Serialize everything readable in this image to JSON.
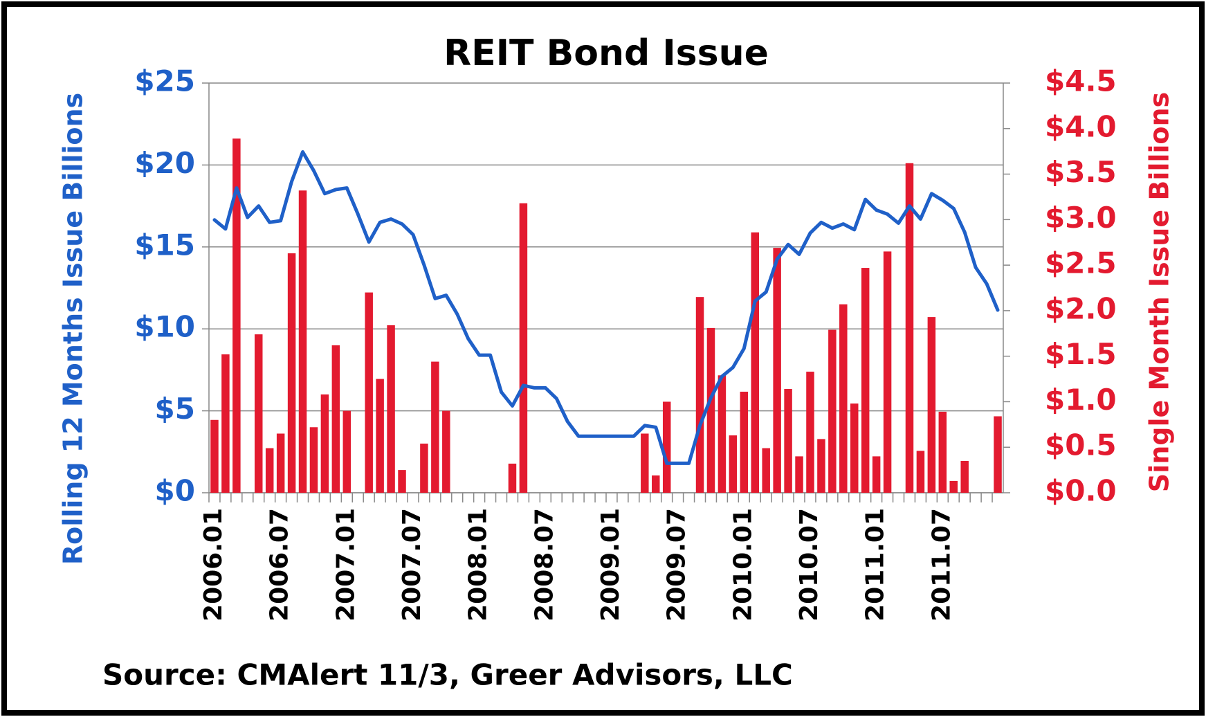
{
  "chart_data": {
    "type": "combo",
    "title": "REIT Bond Issue",
    "y_label": "Rolling 12 Months Issue Billions",
    "y2_label": "Single Month Issue Billions",
    "source": "Source: CMAlert  11/3, Greer Advisors, LLC",
    "categories": [
      "2006.01",
      null,
      null,
      null,
      null,
      null,
      "2006.07",
      null,
      null,
      null,
      null,
      null,
      "2007.01",
      null,
      null,
      null,
      null,
      null,
      "2007.07",
      null,
      null,
      null,
      null,
      null,
      "2008.01",
      null,
      null,
      null,
      null,
      null,
      "2008.07",
      null,
      null,
      null,
      null,
      null,
      "2009.01",
      null,
      null,
      null,
      null,
      null,
      "2009.07",
      null,
      null,
      null,
      null,
      null,
      "2010.01",
      null,
      null,
      null,
      null,
      null,
      "2010.07",
      null,
      null,
      null,
      null,
      null,
      "2011.01",
      null,
      null,
      null,
      null,
      null,
      "2011.07",
      null,
      null,
      null,
      null,
      null
    ],
    "series": [
      {
        "type": "bar",
        "axis": "y2",
        "color": "#e31a2f",
        "values": [
          0.8,
          1.52,
          3.89,
          0,
          1.74,
          0.49,
          0.65,
          2.63,
          3.32,
          0.72,
          1.08,
          1.62,
          0.9,
          0,
          2.2,
          1.25,
          1.84,
          0.25,
          0,
          0.54,
          1.44,
          0.9,
          0,
          0,
          0,
          0,
          0,
          0.32,
          3.18,
          0,
          0,
          0,
          0,
          0,
          0,
          0,
          0,
          0,
          0,
          0.65,
          0.19,
          1.0,
          0,
          0,
          2.15,
          1.81,
          1.29,
          0.63,
          1.11,
          2.86,
          0.49,
          2.69,
          1.14,
          0.4,
          1.33,
          0.59,
          1.79,
          2.07,
          0.98,
          2.47,
          0.4,
          2.65,
          0,
          3.62,
          0.46,
          1.93,
          0.89,
          0.13,
          0.35,
          0,
          0,
          0.84
        ]
      },
      {
        "type": "line",
        "axis": "y",
        "color": "#1f60c8",
        "values": [
          16.65,
          16.1,
          18.6,
          16.8,
          17.5,
          16.5,
          16.6,
          19.0,
          20.8,
          19.65,
          18.25,
          18.5,
          18.6,
          17.0,
          15.3,
          16.5,
          16.7,
          16.4,
          15.75,
          13.9,
          11.85,
          12.05,
          10.9,
          9.4,
          8.4,
          8.4,
          6.15,
          5.3,
          6.55,
          6.4,
          6.4,
          5.75,
          4.35,
          3.45,
          3.45,
          3.45,
          3.45,
          3.45,
          3.45,
          4.1,
          4.0,
          1.8,
          1.8,
          1.8,
          4.1,
          5.8,
          7.1,
          7.65,
          8.8,
          11.7,
          12.25,
          14.25,
          15.15,
          14.55,
          15.85,
          16.5,
          16.15,
          16.4,
          16.05,
          17.9,
          17.25,
          17.0,
          16.45,
          17.5,
          16.7,
          18.25,
          17.85,
          17.35,
          15.9,
          13.75,
          12.75,
          11.15
        ]
      }
    ],
    "ylim": [
      0,
      25
    ],
    "yticks": [
      {
        "value": 0,
        "label": "$0"
      },
      {
        "value": 5,
        "label": "$5"
      },
      {
        "value": 10,
        "label": "$10"
      },
      {
        "value": 15,
        "label": "$15"
      },
      {
        "value": 20,
        "label": "$20"
      },
      {
        "value": 25,
        "label": "$25"
      }
    ],
    "y2lim": [
      0,
      4.5
    ],
    "y2ticks": [
      {
        "value": 0,
        "label": "$0.0"
      },
      {
        "value": 0.5,
        "label": "$0.5"
      },
      {
        "value": 1,
        "label": "$1.0"
      },
      {
        "value": 1.5,
        "label": "$1.5"
      },
      {
        "value": 2,
        "label": "$2.0"
      },
      {
        "value": 2.5,
        "label": "$2.5"
      },
      {
        "value": 3,
        "label": "$3.0"
      },
      {
        "value": 3.5,
        "label": "$3.5"
      },
      {
        "value": 4,
        "label": "$4.0"
      },
      {
        "value": 4.5,
        "label": "$4.5"
      }
    ],
    "grid": true
  }
}
